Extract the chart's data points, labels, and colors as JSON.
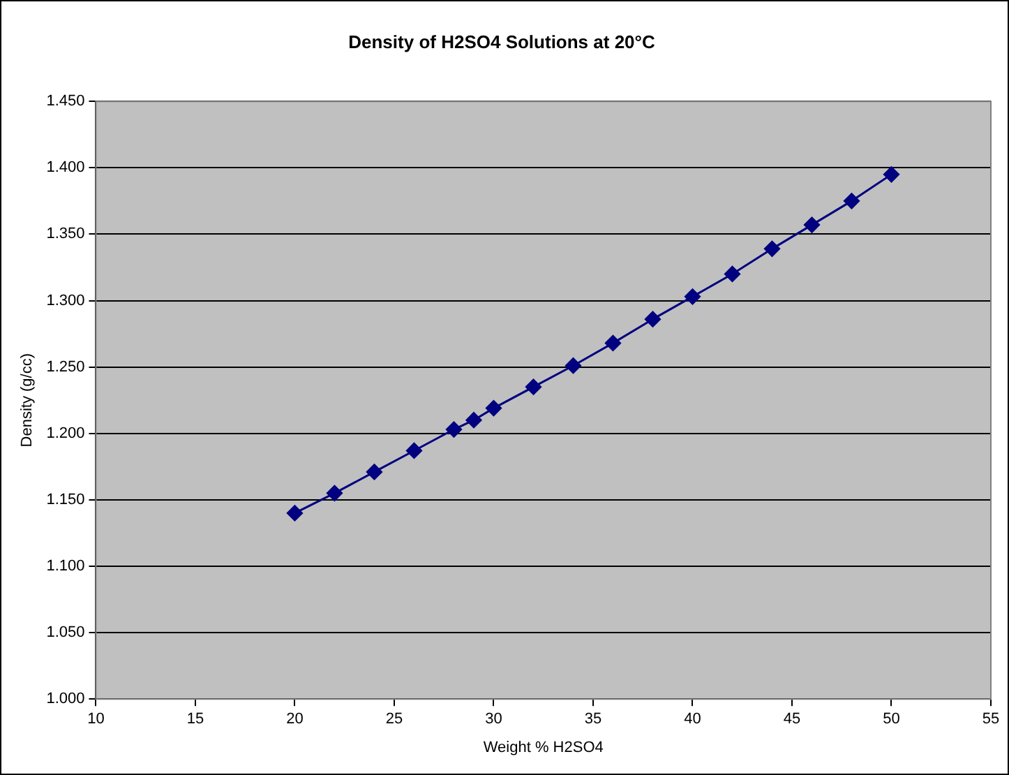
{
  "chart_data": {
    "type": "line",
    "title": "Density of H2SO4 Solutions at 20°C",
    "xlabel": "Weight % H2SO4",
    "ylabel": "Density (g/cc)",
    "x": [
      20,
      22,
      24,
      26,
      28,
      29,
      30,
      32,
      34,
      36,
      38,
      40,
      42,
      44,
      46,
      48,
      50
    ],
    "series": [
      {
        "color": "#000080",
        "values": [
          1.14,
          1.155,
          1.171,
          1.187,
          1.203,
          1.21,
          1.219,
          1.235,
          1.251,
          1.268,
          1.286,
          1.303,
          1.32,
          1.339,
          1.357,
          1.375,
          1.395
        ]
      }
    ],
    "xlim": [
      10,
      55
    ],
    "xticks": [
      10,
      15,
      20,
      25,
      30,
      35,
      40,
      45,
      50,
      55
    ],
    "ylim": [
      1.0,
      1.45
    ],
    "yticks": [
      {
        "value": 1.0,
        "label": "1.000"
      },
      {
        "value": 1.05,
        "label": "1.050"
      },
      {
        "value": 1.1,
        "label": "1.100"
      },
      {
        "value": 1.15,
        "label": "1.150"
      },
      {
        "value": 1.2,
        "label": "1.200"
      },
      {
        "value": 1.25,
        "label": "1.250"
      },
      {
        "value": 1.3,
        "label": "1.300"
      },
      {
        "value": 1.35,
        "label": "1.350"
      },
      {
        "value": 1.4,
        "label": "1.400"
      },
      {
        "value": 1.45,
        "label": "1.450"
      }
    ],
    "grid": "y",
    "legend": false,
    "marker": "diamond",
    "line_style": "solid"
  }
}
